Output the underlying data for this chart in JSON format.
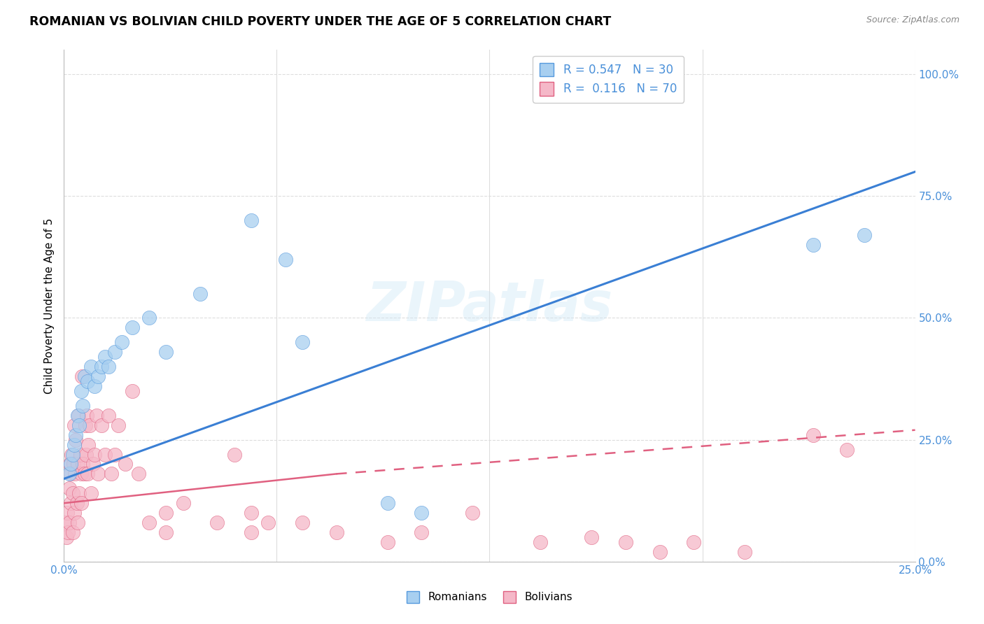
{
  "title": "ROMANIAN VS BOLIVIAN CHILD POVERTY UNDER THE AGE OF 5 CORRELATION CHART",
  "source": "Source: ZipAtlas.com",
  "ylabel": "Child Poverty Under the Age of 5",
  "ytick_vals": [
    0,
    25,
    50,
    75,
    100
  ],
  "ytick_labels": [
    "0.0%",
    "25.0%",
    "50.0%",
    "75.0%",
    "100.0%"
  ],
  "xtick_vals": [
    0,
    25
  ],
  "xtick_labels": [
    "0.0%",
    "25.0%"
  ],
  "xlim": [
    0,
    25
  ],
  "ylim": [
    0,
    105
  ],
  "watermark": "ZIPatlas",
  "legend_r_text": "R = 0.547   N = 30",
  "legend_b_text": "R =  0.116   N = 70",
  "legend_label_r": "Romanians",
  "legend_label_b": "Bolivians",
  "color_r_fill": "#a8cff0",
  "color_r_edge": "#5599dd",
  "color_b_fill": "#f5b8c8",
  "color_b_edge": "#e06080",
  "color_line_r": "#3a7fd4",
  "color_line_b": "#e06080",
  "color_ticks": "#4a90d9",
  "color_grid": "#dddddd",
  "ro_line_x0": 0,
  "ro_line_y0": 17,
  "ro_line_x1": 25,
  "ro_line_y1": 80,
  "bo_solid_x0": 0,
  "bo_solid_y0": 12,
  "bo_solid_x1": 8,
  "bo_solid_y1": 18,
  "bo_dash_x0": 8,
  "bo_dash_y0": 18,
  "bo_dash_x1": 25,
  "bo_dash_y1": 27,
  "ro_x": [
    0.15,
    0.2,
    0.25,
    0.3,
    0.35,
    0.4,
    0.45,
    0.5,
    0.55,
    0.6,
    0.7,
    0.8,
    0.9,
    1.0,
    1.1,
    1.2,
    1.3,
    1.5,
    1.7,
    2.0,
    2.5,
    3.0,
    4.0,
    5.5,
    6.5,
    7.0,
    9.5,
    10.5,
    22.0,
    23.5
  ],
  "ro_y": [
    18,
    20,
    22,
    24,
    26,
    30,
    28,
    35,
    32,
    38,
    37,
    40,
    36,
    38,
    40,
    42,
    40,
    43,
    45,
    48,
    50,
    43,
    55,
    70,
    62,
    45,
    12,
    10,
    65,
    67
  ],
  "bo_x": [
    0.05,
    0.08,
    0.1,
    0.12,
    0.15,
    0.15,
    0.18,
    0.2,
    0.2,
    0.22,
    0.25,
    0.25,
    0.28,
    0.3,
    0.3,
    0.33,
    0.35,
    0.38,
    0.4,
    0.4,
    0.42,
    0.45,
    0.48,
    0.5,
    0.5,
    0.52,
    0.55,
    0.6,
    0.62,
    0.65,
    0.68,
    0.7,
    0.72,
    0.75,
    0.8,
    0.85,
    0.9,
    0.95,
    1.0,
    1.1,
    1.2,
    1.3,
    1.4,
    1.5,
    1.6,
    1.8,
    2.0,
    2.2,
    2.5,
    3.0,
    3.5,
    4.5,
    5.0,
    5.5,
    7.0,
    8.0,
    9.5,
    10.5,
    12.0,
    14.0,
    15.5,
    16.5,
    17.5,
    18.5,
    20.0,
    22.0,
    23.0,
    5.5,
    6.0,
    3.0
  ],
  "bo_y": [
    8,
    5,
    10,
    6,
    15,
    8,
    20,
    12,
    18,
    22,
    6,
    14,
    20,
    28,
    10,
    18,
    25,
    12,
    8,
    20,
    30,
    14,
    22,
    12,
    18,
    38,
    20,
    18,
    28,
    22,
    30,
    18,
    24,
    28,
    14,
    20,
    22,
    30,
    18,
    28,
    22,
    30,
    18,
    22,
    28,
    20,
    35,
    18,
    8,
    10,
    12,
    8,
    22,
    6,
    8,
    6,
    4,
    6,
    10,
    4,
    5,
    4,
    2,
    4,
    2,
    26,
    23,
    10,
    8,
    6
  ]
}
